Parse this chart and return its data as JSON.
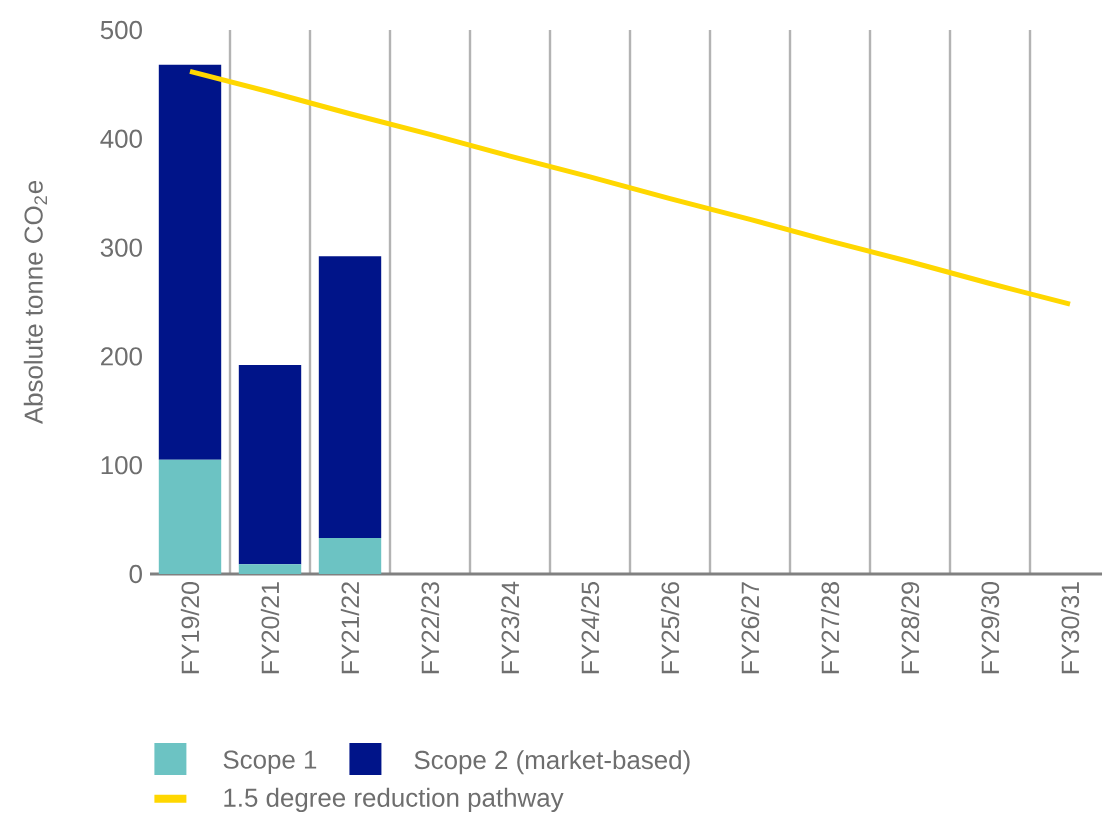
{
  "chart_data": {
    "type": "bar",
    "stacked": true,
    "ylabel": "Absolute tonne CO$_{2}$e",
    "categories": [
      "FY19/20",
      "FY20/21",
      "FY21/22",
      "FY22/23",
      "FY23/24",
      "FY24/25",
      "FY25/26",
      "FY26/27",
      "FY27/28",
      "FY28/29",
      "FY29/30",
      "FY30/31"
    ],
    "series": [
      {
        "name": "Scope 1",
        "color": "#6cc3c3",
        "values": [
          105,
          9,
          33,
          null,
          null,
          null,
          null,
          null,
          null,
          null,
          null,
          null
        ]
      },
      {
        "name": "Scope 2 (market-based)",
        "color": "#001489",
        "values": [
          363,
          183,
          259,
          null,
          null,
          null,
          null,
          null,
          null,
          null,
          null,
          null
        ]
      },
      {
        "name": "1.5 degree reduction pathway",
        "type": "line",
        "color": "#ffd700",
        "values": [
          462,
          443,
          423,
          404,
          384,
          365,
          345,
          326,
          306,
          287,
          267,
          248
        ]
      }
    ],
    "ylim": [
      0,
      500
    ],
    "yticks": [
      0,
      100,
      200,
      300,
      400,
      500
    ],
    "grid": "x",
    "legend": "bottom"
  }
}
